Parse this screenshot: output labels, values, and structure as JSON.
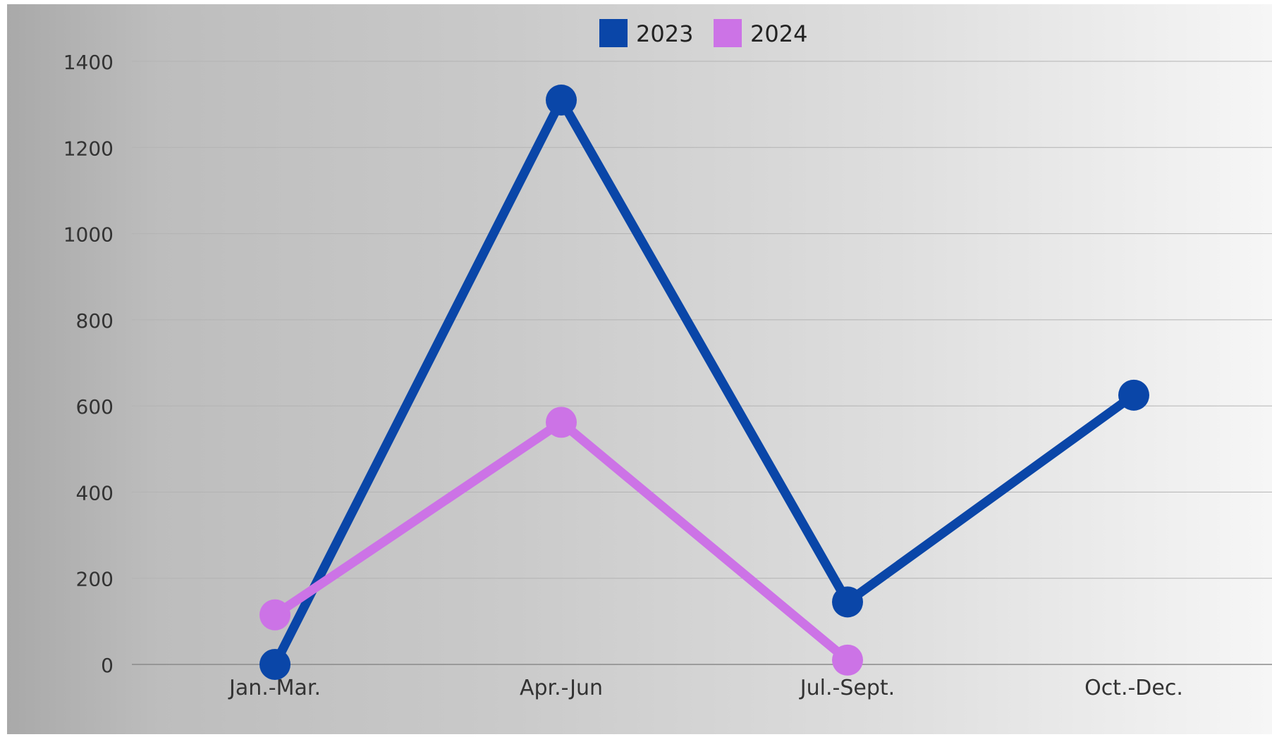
{
  "chart_data": {
    "type": "line",
    "categories": [
      "Jan.-Mar.",
      "Apr.-Jun",
      "Jul.-Sept.",
      "Oct.-Dec."
    ],
    "series": [
      {
        "name": "2023",
        "color": "#0a46a8",
        "values": [
          0,
          1310,
          145,
          625
        ]
      },
      {
        "name": "2024",
        "color": "#cc73e6",
        "values": [
          115,
          562,
          10,
          null
        ]
      }
    ],
    "ylim": [
      0,
      1400
    ],
    "yticks": [
      0,
      200,
      400,
      600,
      800,
      1000,
      1200,
      1400
    ],
    "grid": true,
    "legend_position": "top-center"
  }
}
